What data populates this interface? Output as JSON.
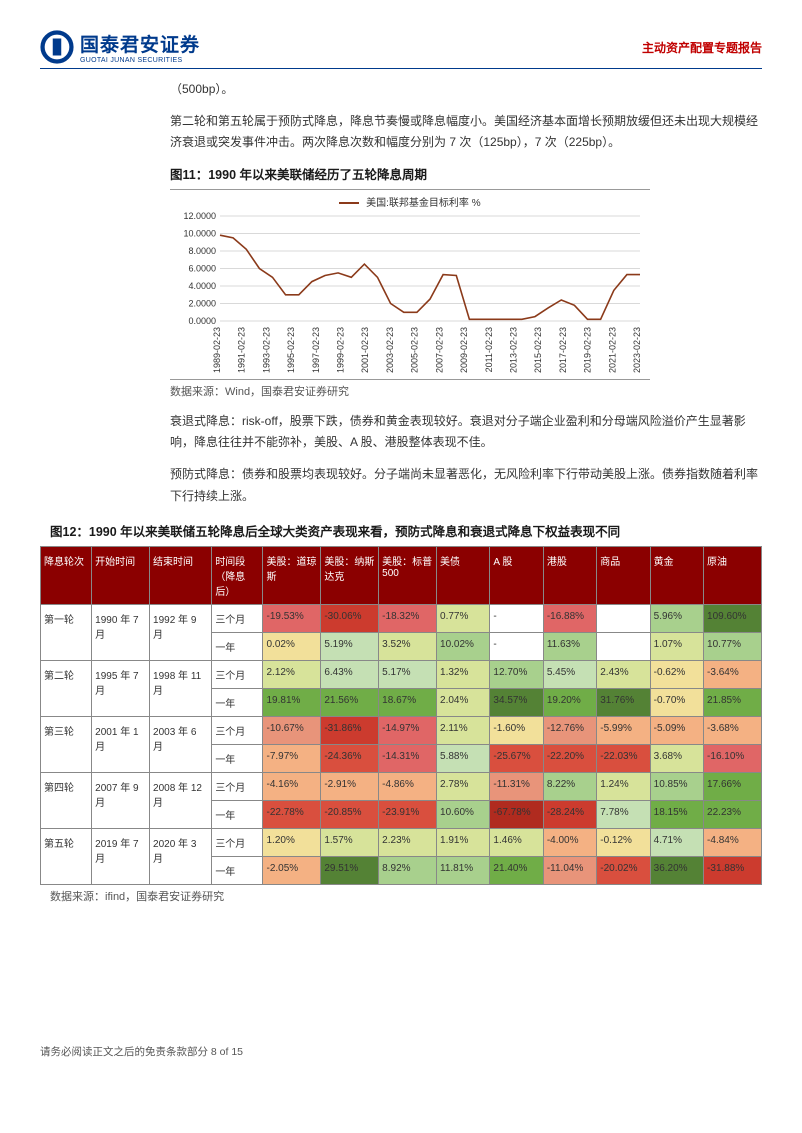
{
  "header": {
    "logo_cn": "国泰君安证券",
    "logo_en": "GUOTAI JUNAN SECURITIES",
    "report_type": "主动资产配置专题报告"
  },
  "frag_top": "（500bp）。",
  "para1": "第二轮和第五轮属于预防式降息，降息节奏慢或降息幅度小。美国经济基本面增长预期放缓但还未出现大规模经济衰退或突发事件冲击。两次降息次数和幅度分别为 7 次（125bp），7 次（225bp）。",
  "fig11_title": "图11：1990 年以来美联储经历了五轮降息周期",
  "chart11": {
    "type": "line",
    "legend_label": "美国:联邦基金目标利率 %",
    "series_color": "#8b3a1a",
    "background_color": "#ffffff",
    "grid_color": "#d9d9d9",
    "ylim": [
      0,
      12
    ],
    "ytick_step": 2,
    "ytick_labels": [
      "0.0000",
      "2.0000",
      "4.0000",
      "6.0000",
      "8.0000",
      "10.0000",
      "12.0000"
    ],
    "x_labels": [
      "1989-02-23",
      "1991-02-23",
      "1993-02-23",
      "1995-02-23",
      "1997-02-23",
      "1999-02-23",
      "2001-02-23",
      "2003-02-23",
      "2005-02-23",
      "2007-02-23",
      "2009-02-23",
      "2011-02-23",
      "2013-02-23",
      "2015-02-23",
      "2017-02-23",
      "2019-02-23",
      "2021-02-23",
      "2023-02-23"
    ],
    "values": [
      9.8,
      9.5,
      8.2,
      6.0,
      5.0,
      3.0,
      3.0,
      4.5,
      5.2,
      5.5,
      5.0,
      6.5,
      5.0,
      2.0,
      1.0,
      1.0,
      2.5,
      5.3,
      5.2,
      0.2,
      0.2,
      0.2,
      0.2,
      0.2,
      0.5,
      1.5,
      2.4,
      1.8,
      0.2,
      0.2,
      3.5,
      5.3,
      5.3
    ],
    "line_width": 1.6,
    "label_fontsize": 9
  },
  "chart11_source": "数据来源：Wind，国泰君安证券研究",
  "para2": "衰退式降息：risk-off，股票下跌，债券和黄金表现较好。衰退对分子端企业盈利和分母端风险溢价产生显著影响，降息往往并不能弥补，美股、A 股、港股整体表现不佳。",
  "para3": "预防式降息：债券和股票均表现较好。分子端尚未显著恶化，无风险利率下行带动美股上涨。债券指数随着利率下行持续上涨。",
  "fig12_title": "图12：1990 年以来美联储五轮降息后全球大类资产表现来看，预防式降息和衰退式降息下权益表现不同",
  "table12": {
    "header_bg": "#8b0000",
    "header_fg": "#ffffff",
    "border_color": "#888888",
    "columns": [
      "降息轮次",
      "开始时间",
      "结束时间",
      "时间段（降息后）",
      "美股：道琼斯",
      "美股：纳斯达克",
      "美股：标普 500",
      "美债",
      "A 股",
      "港股",
      "商品",
      "黄金",
      "原油"
    ],
    "col_widths": [
      "46px",
      "52px",
      "56px",
      "46px",
      "52px",
      "52px",
      "52px",
      "48px",
      "48px",
      "48px",
      "48px",
      "48px",
      "52px"
    ],
    "rounds": [
      {
        "round": "第一轮",
        "start": "1990 年 7 月",
        "end": "1992 年 9 月",
        "rows": [
          {
            "period": "三个月",
            "cells": [
              {
                "v": "-19.53%",
                "c": "#e06666"
              },
              {
                "v": "-30.06%",
                "c": "#cc3b2e"
              },
              {
                "v": "-18.32%",
                "c": "#e06666"
              },
              {
                "v": "0.77%",
                "c": "#d7e39a"
              },
              {
                "v": "-",
                "c": "#ffffff"
              },
              {
                "v": "-16.88%",
                "c": "#e06666"
              },
              {
                "v": "",
                "c": "#ffffff"
              },
              {
                "v": "5.96%",
                "c": "#a8d08d"
              },
              {
                "v": "109.60%",
                "c": "#548235"
              }
            ]
          },
          {
            "period": "一年",
            "cells": [
              {
                "v": "0.02%",
                "c": "#f2e09a"
              },
              {
                "v": "5.19%",
                "c": "#c5e0b4"
              },
              {
                "v": "3.52%",
                "c": "#d7e39a"
              },
              {
                "v": "10.02%",
                "c": "#a8d08d"
              },
              {
                "v": "-",
                "c": "#ffffff"
              },
              {
                "v": "11.63%",
                "c": "#a8d08d"
              },
              {
                "v": "",
                "c": "#ffffff"
              },
              {
                "v": "1.07%",
                "c": "#d7e39a"
              },
              {
                "v": "10.77%",
                "c": "#a8d08d"
              }
            ]
          }
        ]
      },
      {
        "round": "第二轮",
        "start": "1995 年 7 月",
        "end": "1998 年 11 月",
        "rows": [
          {
            "period": "三个月",
            "cells": [
              {
                "v": "2.12%",
                "c": "#d7e39a"
              },
              {
                "v": "6.43%",
                "c": "#c5e0b4"
              },
              {
                "v": "5.17%",
                "c": "#c5e0b4"
              },
              {
                "v": "1.32%",
                "c": "#d7e39a"
              },
              {
                "v": "12.70%",
                "c": "#a8d08d"
              },
              {
                "v": "5.45%",
                "c": "#c5e0b4"
              },
              {
                "v": "2.43%",
                "c": "#d7e39a"
              },
              {
                "v": "-0.62%",
                "c": "#f2e09a"
              },
              {
                "v": "-3.64%",
                "c": "#f4b183"
              }
            ]
          },
          {
            "period": "一年",
            "cells": [
              {
                "v": "19.81%",
                "c": "#70ad47"
              },
              {
                "v": "21.56%",
                "c": "#70ad47"
              },
              {
                "v": "18.67%",
                "c": "#70ad47"
              },
              {
                "v": "2.04%",
                "c": "#d7e39a"
              },
              {
                "v": "34.57%",
                "c": "#548235"
              },
              {
                "v": "19.20%",
                "c": "#70ad47"
              },
              {
                "v": "31.76%",
                "c": "#548235"
              },
              {
                "v": "-0.70%",
                "c": "#f2e09a"
              },
              {
                "v": "21.85%",
                "c": "#70ad47"
              }
            ]
          }
        ]
      },
      {
        "round": "第三轮",
        "start": "2001 年 1 月",
        "end": "2003 年 6 月",
        "rows": [
          {
            "period": "三个月",
            "cells": [
              {
                "v": "-10.67%",
                "c": "#e8947a"
              },
              {
                "v": "-31.86%",
                "c": "#cc3b2e"
              },
              {
                "v": "-14.97%",
                "c": "#e06666"
              },
              {
                "v": "2.11%",
                "c": "#d7e39a"
              },
              {
                "v": "-1.60%",
                "c": "#f2e09a"
              },
              {
                "v": "-12.76%",
                "c": "#e8947a"
              },
              {
                "v": "-5.99%",
                "c": "#f4b183"
              },
              {
                "v": "-5.09%",
                "c": "#f4b183"
              },
              {
                "v": "-3.68%",
                "c": "#f4b183"
              }
            ]
          },
          {
            "period": "一年",
            "cells": [
              {
                "v": "-7.97%",
                "c": "#f4b183"
              },
              {
                "v": "-24.36%",
                "c": "#d94f3e"
              },
              {
                "v": "-14.31%",
                "c": "#e06666"
              },
              {
                "v": "5.88%",
                "c": "#c5e0b4"
              },
              {
                "v": "-25.67%",
                "c": "#d94f3e"
              },
              {
                "v": "-22.20%",
                "c": "#d94f3e"
              },
              {
                "v": "-22.03%",
                "c": "#d94f3e"
              },
              {
                "v": "3.68%",
                "c": "#d7e39a"
              },
              {
                "v": "-16.10%",
                "c": "#e06666"
              }
            ]
          }
        ]
      },
      {
        "round": "第四轮",
        "start": "2007 年 9 月",
        "end": "2008 年 12 月",
        "rows": [
          {
            "period": "三个月",
            "cells": [
              {
                "v": "-4.16%",
                "c": "#f4b183"
              },
              {
                "v": "-2.91%",
                "c": "#f4b183"
              },
              {
                "v": "-4.86%",
                "c": "#f4b183"
              },
              {
                "v": "2.78%",
                "c": "#d7e39a"
              },
              {
                "v": "-11.31%",
                "c": "#e8947a"
              },
              {
                "v": "8.22%",
                "c": "#a8d08d"
              },
              {
                "v": "1.24%",
                "c": "#d7e39a"
              },
              {
                "v": "10.85%",
                "c": "#a8d08d"
              },
              {
                "v": "17.66%",
                "c": "#70ad47"
              }
            ]
          },
          {
            "period": "一年",
            "cells": [
              {
                "v": "-22.78%",
                "c": "#d94f3e"
              },
              {
                "v": "-20.85%",
                "c": "#d94f3e"
              },
              {
                "v": "-23.91%",
                "c": "#d94f3e"
              },
              {
                "v": "10.60%",
                "c": "#a8d08d"
              },
              {
                "v": "-67.78%",
                "c": "#b02b1f"
              },
              {
                "v": "-28.24%",
                "c": "#cc3b2e"
              },
              {
                "v": "7.78%",
                "c": "#c5e0b4"
              },
              {
                "v": "18.15%",
                "c": "#70ad47"
              },
              {
                "v": "22.23%",
                "c": "#70ad47"
              }
            ]
          }
        ]
      },
      {
        "round": "第五轮",
        "start": "2019 年 7 月",
        "end": "2020 年 3 月",
        "rows": [
          {
            "period": "三个月",
            "cells": [
              {
                "v": "1.20%",
                "c": "#f2e09a"
              },
              {
                "v": "1.57%",
                "c": "#d7e39a"
              },
              {
                "v": "2.23%",
                "c": "#d7e39a"
              },
              {
                "v": "1.91%",
                "c": "#d7e39a"
              },
              {
                "v": "1.46%",
                "c": "#d7e39a"
              },
              {
                "v": "-4.00%",
                "c": "#f4b183"
              },
              {
                "v": "-0.12%",
                "c": "#f2e09a"
              },
              {
                "v": "4.71%",
                "c": "#c5e0b4"
              },
              {
                "v": "-4.84%",
                "c": "#f4b183"
              }
            ]
          },
          {
            "period": "一年",
            "cells": [
              {
                "v": "-2.05%",
                "c": "#f4b183"
              },
              {
                "v": "29.51%",
                "c": "#548235"
              },
              {
                "v": "8.92%",
                "c": "#a8d08d"
              },
              {
                "v": "11.81%",
                "c": "#a8d08d"
              },
              {
                "v": "21.40%",
                "c": "#70ad47"
              },
              {
                "v": "-11.04%",
                "c": "#e8947a"
              },
              {
                "v": "-20.02%",
                "c": "#d94f3e"
              },
              {
                "v": "36.20%",
                "c": "#548235"
              },
              {
                "v": "-31.88%",
                "c": "#cc3b2e"
              }
            ]
          }
        ]
      }
    ]
  },
  "table12_source": "数据来源：ifind，国泰君安证券研究",
  "footer": "请务必阅读正文之后的免责条款部分 8 of 15"
}
